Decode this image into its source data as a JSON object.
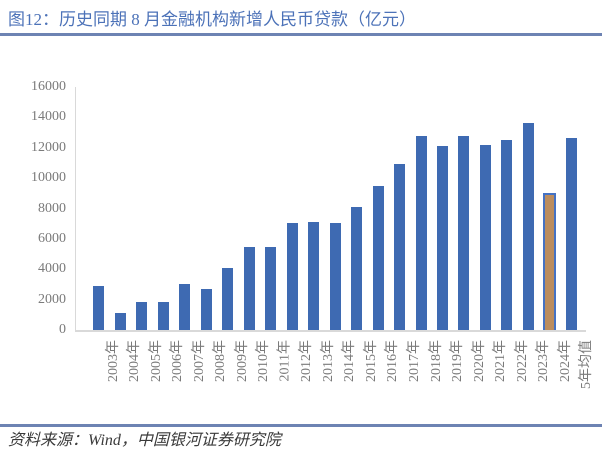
{
  "figure": {
    "title": "图12：历史同期 8 月金融机构新增人民币贷款（亿元）",
    "source": "资料来源：Wind，中国银河证券研究院"
  },
  "chart_data": {
    "type": "bar",
    "title": "历史同期 8 月金融机构新增人民币贷款（亿元）",
    "xlabel": "",
    "ylabel": "",
    "categories": [
      "2003年",
      "2004年",
      "2005年",
      "2006年",
      "2007年",
      "2008年",
      "2009年",
      "2010年",
      "2011年",
      "2012年",
      "2013年",
      "2014年",
      "2015年",
      "2016年",
      "2017年",
      "2018年",
      "2019年",
      "2020年",
      "2021年",
      "2022年",
      "2023年",
      "2024年",
      "5年均值"
    ],
    "values": [
      2900,
      1150,
      1870,
      1850,
      3030,
      2720,
      4100,
      5450,
      5490,
      7040,
      7110,
      7030,
      8100,
      9490,
      10900,
      12800,
      12100,
      12800,
      12200,
      12500,
      13600,
      9000,
      12640
    ],
    "highlight_category": "2024年",
    "ylim": [
      0,
      16000
    ],
    "yticks": [
      16000,
      14000,
      12000,
      10000,
      8000,
      6000,
      4000,
      2000,
      0
    ],
    "grid": false,
    "legend": false,
    "colors": {
      "bar": "#3e6ab2",
      "highlight_fill": "#bb8d5f",
      "highlight_border": "#4472c4",
      "title": "#4c72b8",
      "rule": "#6d83b3",
      "tick_text": "#7b7b7b",
      "axis_line": "#d9d9d9"
    }
  }
}
